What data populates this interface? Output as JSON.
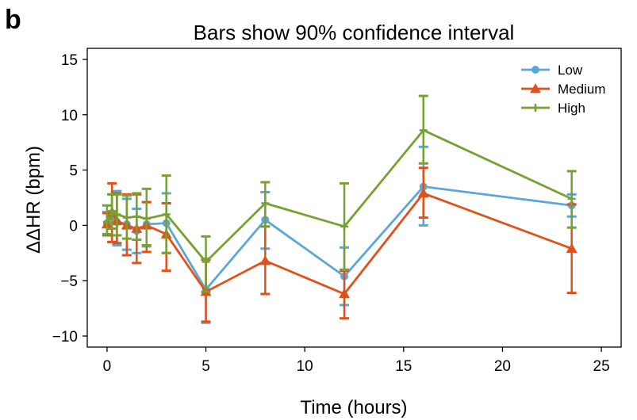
{
  "panel_label": "b",
  "chart_data": {
    "type": "line",
    "title": "Bars show 90% confidence interval",
    "xlabel": "Time (hours)",
    "ylabel": "ΔΔHR (bpm)",
    "xlim": [
      -1,
      26
    ],
    "ylim": [
      -11,
      16
    ],
    "xticks": [
      0,
      5,
      10,
      15,
      20,
      25
    ],
    "yticks": [
      -10,
      -5,
      0,
      5,
      10,
      15
    ],
    "xtick_labels": [
      "0",
      "5",
      "10",
      "15",
      "20",
      "25"
    ],
    "ytick_labels": [
      "−10",
      "−5",
      "0",
      "5",
      "10",
      "15"
    ],
    "grid": false,
    "legend_position": "top-right",
    "series": [
      {
        "name": "Low",
        "color": "#5ba8d8",
        "marker": "circle",
        "x": [
          0,
          0.25,
          0.5,
          1,
          1.5,
          2,
          3,
          5,
          8,
          12,
          16,
          23.5
        ],
        "y": [
          0.2,
          0.8,
          0.3,
          0.1,
          -0.5,
          0.1,
          0.2,
          -5.8,
          0.5,
          -4.6,
          3.5,
          1.8
        ],
        "err_low": [
          -0.8,
          -1.5,
          -1.8,
          -2.2,
          -2.5,
          -1.9,
          -2.5,
          -8.8,
          -2.1,
          -7.2,
          0.0,
          0.8
        ],
        "err_high": [
          1.2,
          2.8,
          3.1,
          2.4,
          1.5,
          2.1,
          2.9,
          -3.0,
          3.0,
          -2.0,
          7.1,
          2.8
        ]
      },
      {
        "name": "Medium",
        "color": "#e0521a",
        "marker": "triangle",
        "x": [
          0,
          0.25,
          0.5,
          1,
          1.5,
          2,
          3,
          5,
          8,
          12,
          16,
          23.5
        ],
        "y": [
          0.1,
          1.2,
          0.4,
          0.0,
          -0.3,
          0.0,
          -0.8,
          -6.0,
          -3.2,
          -6.2,
          2.9,
          -2.1
        ],
        "err_low": [
          -0.9,
          -1.5,
          -1.6,
          -2.7,
          -3.4,
          -2.4,
          -4.1,
          -8.7,
          -6.2,
          -8.4,
          0.7,
          -6.1
        ],
        "err_high": [
          1.1,
          3.8,
          2.9,
          2.8,
          2.8,
          2.1,
          2.0,
          -3.1,
          -0.1,
          -4.1,
          5.2,
          1.9
        ]
      },
      {
        "name": "High",
        "color": "#77a132",
        "marker": "plus",
        "x": [
          0,
          0.25,
          0.5,
          1,
          1.5,
          2,
          3,
          5,
          8,
          12,
          16,
          23.5
        ],
        "y": [
          0.3,
          1.3,
          1.0,
          0.7,
          0.8,
          0.6,
          1.0,
          -3.3,
          2.0,
          -0.1,
          8.6,
          2.4
        ],
        "err_low": [
          -0.8,
          -0.3,
          -0.9,
          -1.2,
          -1.3,
          -1.8,
          -2.5,
          -6.0,
          -0.1,
          -4.0,
          5.6,
          -0.2
        ],
        "err_high": [
          1.8,
          2.8,
          2.8,
          2.7,
          2.9,
          3.3,
          4.5,
          -1.0,
          3.9,
          3.8,
          11.7,
          4.9
        ]
      }
    ]
  }
}
